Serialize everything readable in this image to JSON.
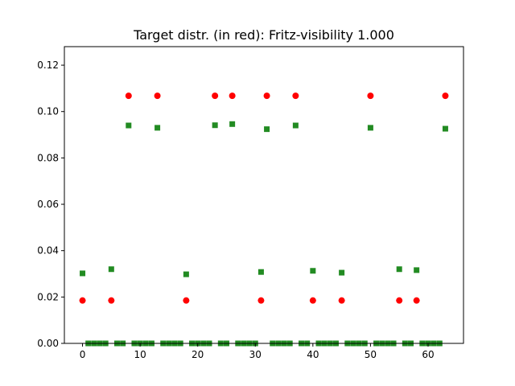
{
  "chart_data": {
    "type": "scatter",
    "title": "Target distr. (in red): Fritz-visibility 1.000",
    "xlabel": "",
    "ylabel": "",
    "xlim": [
      -3.15,
      66.15
    ],
    "ylim": [
      0,
      0.128
    ],
    "xticks": [
      0,
      10,
      20,
      30,
      40,
      50,
      60
    ],
    "yticks": [
      0.0,
      0.02,
      0.04,
      0.06,
      0.08,
      0.1,
      0.12
    ],
    "ytick_labels": [
      "0.00",
      "0.02",
      "0.04",
      "0.06",
      "0.08",
      "0.10",
      "0.12"
    ],
    "grid": false,
    "series": [
      {
        "marker": "circle",
        "color": "#ff0000",
        "points": [
          [
            0,
            0.0185
          ],
          [
            5,
            0.0185
          ],
          [
            8,
            0.1068
          ],
          [
            13,
            0.1068
          ],
          [
            18,
            0.0185
          ],
          [
            23,
            0.1068
          ],
          [
            26,
            0.1068
          ],
          [
            31,
            0.0185
          ],
          [
            32,
            0.1068
          ],
          [
            37,
            0.1068
          ],
          [
            40,
            0.0185
          ],
          [
            45,
            0.0185
          ],
          [
            50,
            0.1068
          ],
          [
            55,
            0.0185
          ],
          [
            58,
            0.0185
          ],
          [
            63,
            0.1068
          ]
        ]
      },
      {
        "marker": "square",
        "color": "#228b22",
        "points": [
          [
            0,
            0.0302
          ],
          [
            1,
            0
          ],
          [
            2,
            0
          ],
          [
            3,
            0
          ],
          [
            4,
            0
          ],
          [
            5,
            0.032
          ],
          [
            6,
            0
          ],
          [
            7,
            0
          ],
          [
            8,
            0.094
          ],
          [
            9,
            0
          ],
          [
            10,
            0
          ],
          [
            11,
            0
          ],
          [
            12,
            0
          ],
          [
            13,
            0.093
          ],
          [
            14,
            0
          ],
          [
            15,
            0
          ],
          [
            16,
            0
          ],
          [
            17,
            0
          ],
          [
            18,
            0.0298
          ],
          [
            19,
            0
          ],
          [
            20,
            0
          ],
          [
            21,
            0
          ],
          [
            22,
            0
          ],
          [
            23,
            0.0941
          ],
          [
            24,
            0
          ],
          [
            25,
            0
          ],
          [
            26,
            0.0946
          ],
          [
            27,
            0
          ],
          [
            28,
            0
          ],
          [
            29,
            0
          ],
          [
            30,
            0
          ],
          [
            31,
            0.0308
          ],
          [
            32,
            0.0924
          ],
          [
            33,
            0
          ],
          [
            34,
            0
          ],
          [
            35,
            0
          ],
          [
            36,
            0
          ],
          [
            37,
            0.094
          ],
          [
            38,
            0
          ],
          [
            39,
            0
          ],
          [
            40,
            0.0313
          ],
          [
            41,
            0
          ],
          [
            42,
            0
          ],
          [
            43,
            0
          ],
          [
            44,
            0
          ],
          [
            45,
            0.0305
          ],
          [
            46,
            0
          ],
          [
            47,
            0
          ],
          [
            48,
            0
          ],
          [
            49,
            0
          ],
          [
            50,
            0.093
          ],
          [
            51,
            0
          ],
          [
            52,
            0
          ],
          [
            53,
            0
          ],
          [
            54,
            0
          ],
          [
            55,
            0.032
          ],
          [
            56,
            0
          ],
          [
            57,
            0
          ],
          [
            58,
            0.0316
          ],
          [
            59,
            0
          ],
          [
            60,
            0
          ],
          [
            61,
            0
          ],
          [
            62,
            0
          ],
          [
            63,
            0.0926
          ]
        ]
      }
    ]
  }
}
